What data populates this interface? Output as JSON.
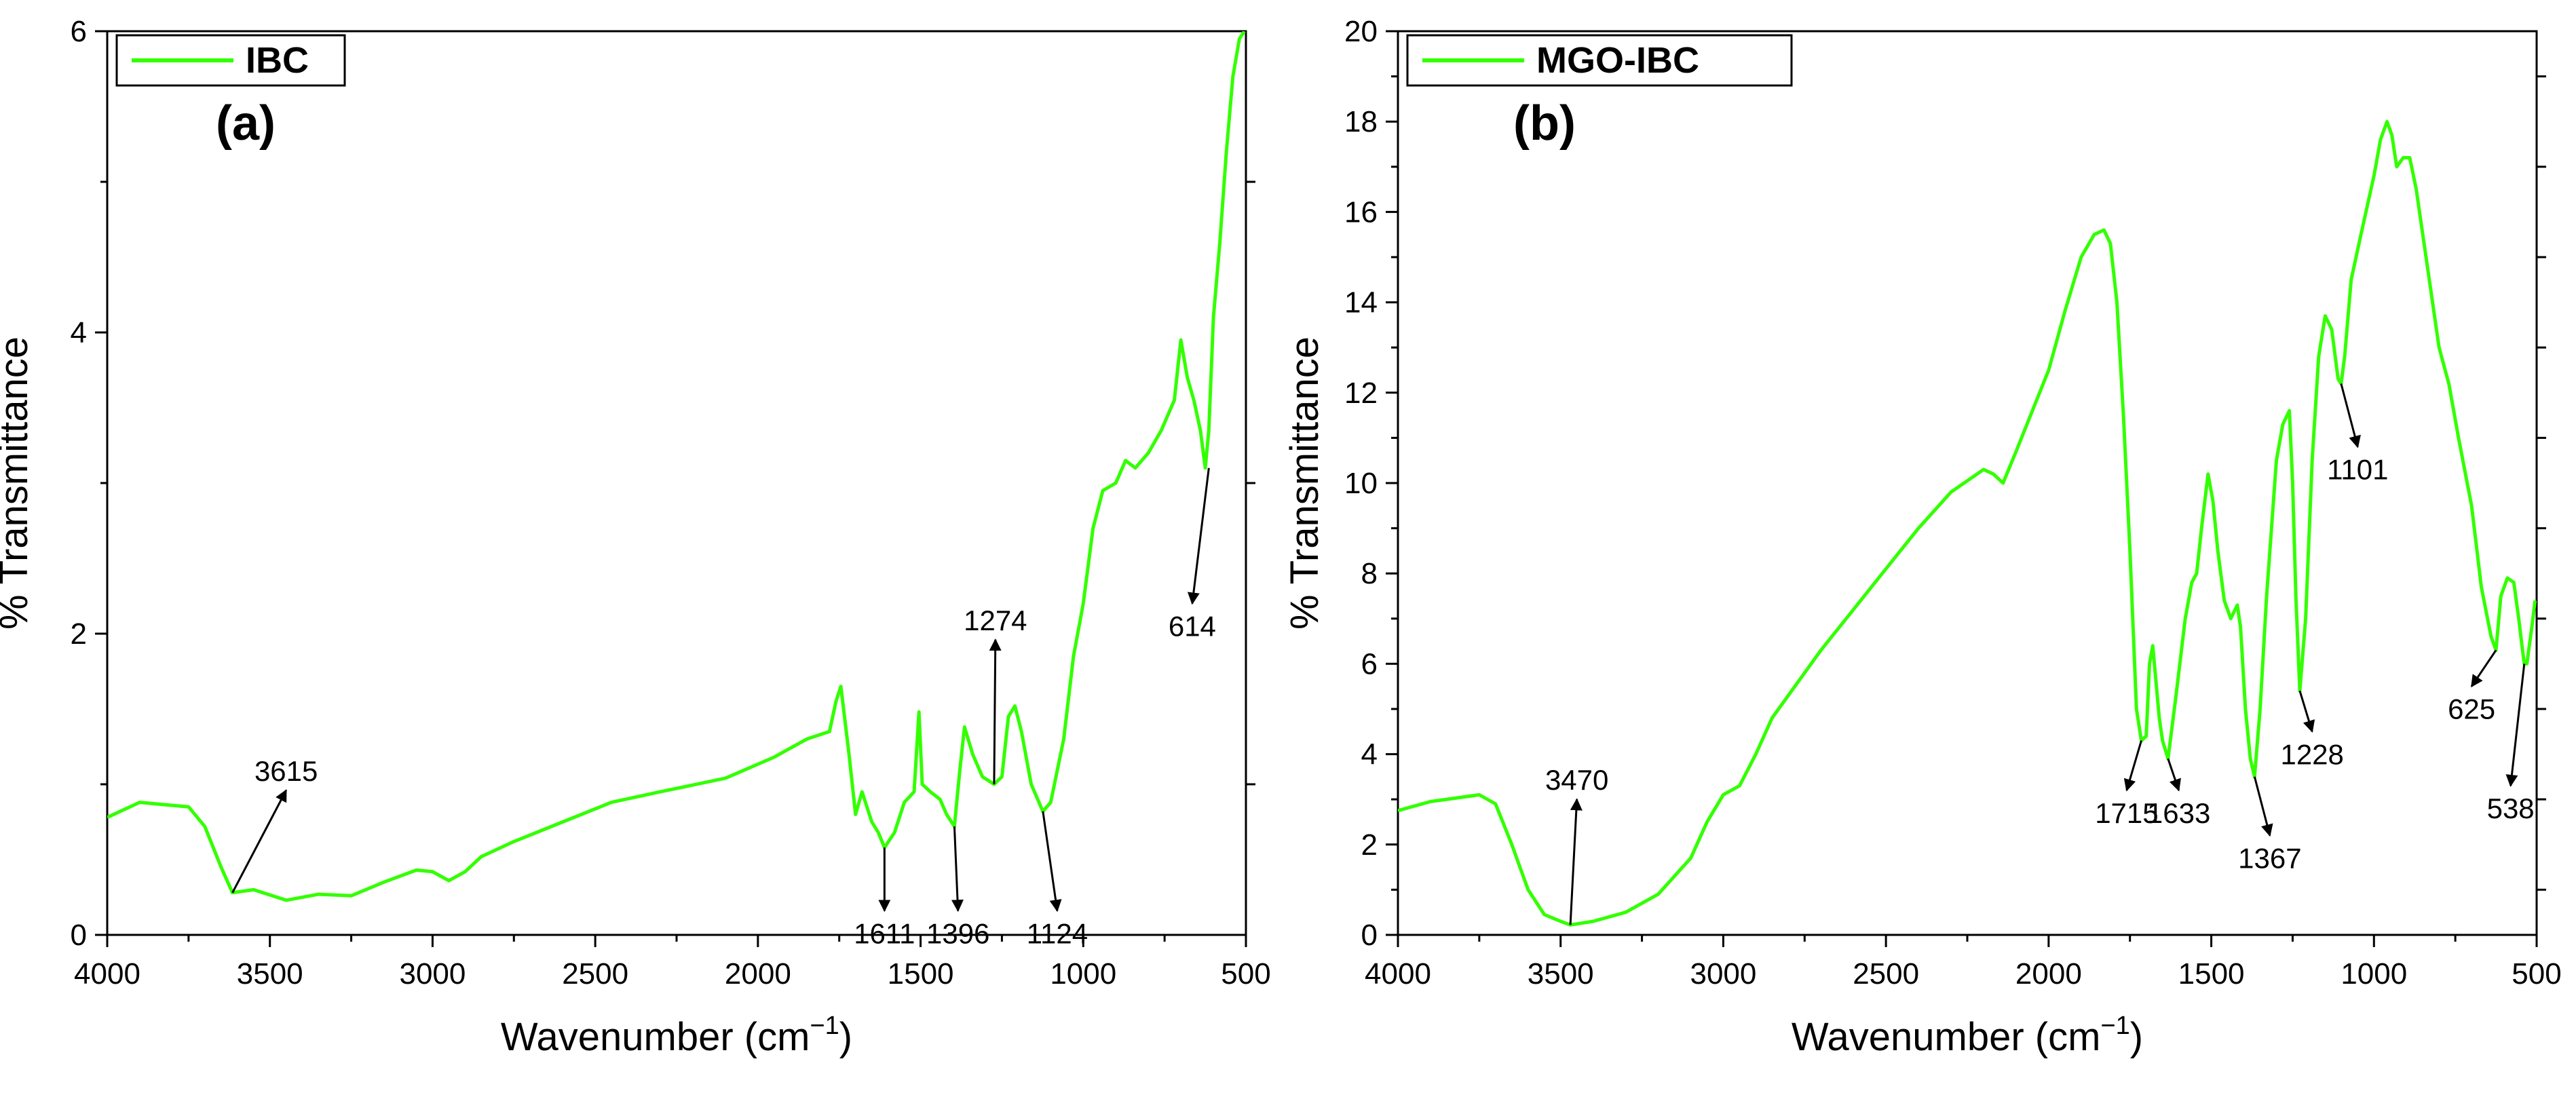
{
  "line_color": "#33ff00",
  "axis_color": "#000000",
  "chart_data": [
    {
      "id": "a",
      "type": "line",
      "panel_label": "(a)",
      "legend": "IBC",
      "xlabel": "Wavenumber (cm",
      "xlabel_sup": "−1",
      "xlabel_end": ")",
      "ylabel": "% Transmittance",
      "xlim": [
        4000,
        500
      ],
      "ylim": [
        0,
        6
      ],
      "xticks": [
        4000,
        3500,
        3000,
        2500,
        2000,
        1500,
        1000,
        500
      ],
      "xtick_labels": [
        "4000",
        "3500",
        "3000",
        "2500",
        "2000",
        "1500",
        "1000",
        "500"
      ],
      "yticks": [
        0,
        2,
        4,
        6
      ],
      "ytick_labels": [
        "0",
        "2",
        "4",
        "6"
      ],
      "series": [
        {
          "name": "IBC",
          "x": [
            4000,
            3900,
            3800,
            3750,
            3700,
            3650,
            3615,
            3550,
            3450,
            3350,
            3250,
            3150,
            3050,
            3000,
            2950,
            2900,
            2850,
            2750,
            2600,
            2450,
            2300,
            2100,
            1950,
            1850,
            1780,
            1760,
            1745,
            1720,
            1700,
            1680,
            1650,
            1630,
            1611,
            1580,
            1550,
            1520,
            1505,
            1495,
            1470,
            1440,
            1420,
            1396,
            1380,
            1365,
            1340,
            1310,
            1274,
            1250,
            1230,
            1210,
            1190,
            1160,
            1124,
            1100,
            1060,
            1030,
            1000,
            970,
            940,
            900,
            870,
            840,
            800,
            760,
            720,
            700,
            680,
            660,
            640,
            625,
            614,
            600,
            580,
            560,
            540,
            520,
            505
          ],
          "y": [
            0.78,
            0.88,
            0.86,
            0.85,
            0.72,
            0.45,
            0.28,
            0.3,
            0.23,
            0.27,
            0.26,
            0.35,
            0.43,
            0.42,
            0.36,
            0.42,
            0.52,
            0.62,
            0.75,
            0.88,
            0.95,
            1.04,
            1.18,
            1.3,
            1.35,
            1.55,
            1.65,
            1.2,
            0.8,
            0.95,
            0.75,
            0.68,
            0.58,
            0.68,
            0.88,
            0.95,
            1.48,
            1.0,
            0.95,
            0.9,
            0.8,
            0.72,
            1.08,
            1.38,
            1.2,
            1.05,
            1.0,
            1.05,
            1.45,
            1.52,
            1.35,
            1.0,
            0.82,
            0.88,
            1.3,
            1.85,
            2.2,
            2.7,
            2.95,
            3.0,
            3.15,
            3.1,
            3.2,
            3.35,
            3.55,
            3.95,
            3.7,
            3.55,
            3.35,
            3.1,
            3.35,
            4.1,
            4.6,
            5.2,
            5.7,
            5.95,
            6.0
          ]
        }
      ],
      "annotations": [
        {
          "text": "3615",
          "x": 3615,
          "y": 0.28,
          "lx": 3450,
          "ly": 0.96
        },
        {
          "text": "1611",
          "x": 1611,
          "y": 0.58,
          "lx": 1611,
          "ly": 0.16
        },
        {
          "text": "1396",
          "x": 1396,
          "y": 0.72,
          "lx": 1385,
          "ly": 0.16
        },
        {
          "text": "1274",
          "x": 1274,
          "y": 1.0,
          "lx": 1270,
          "ly": 1.96
        },
        {
          "text": "1124",
          "x": 1124,
          "y": 0.82,
          "lx": 1080,
          "ly": 0.16
        },
        {
          "text": "614",
          "x": 614,
          "y": 3.1,
          "lx": 665,
          "ly": 2.2
        }
      ]
    },
    {
      "id": "b",
      "type": "line",
      "panel_label": "(b)",
      "legend": "MGO-IBC",
      "xlabel": "Wavenumber (cm",
      "xlabel_sup": "−1",
      "xlabel_end": ")",
      "ylabel": "% Transmittance",
      "xlim": [
        4000,
        500
      ],
      "ylim": [
        0,
        20
      ],
      "xticks": [
        4000,
        3500,
        3000,
        2500,
        2000,
        1500,
        1000,
        500
      ],
      "xtick_labels": [
        "4000",
        "3500",
        "3000",
        "2500",
        "2000",
        "1500",
        "1000",
        "500"
      ],
      "yticks": [
        0,
        2,
        4,
        6,
        8,
        10,
        12,
        14,
        16,
        18,
        20
      ],
      "ytick_labels": [
        "0",
        "2",
        "4",
        "6",
        "8",
        "10",
        "12",
        "14",
        "16",
        "18",
        "20"
      ],
      "series": [
        {
          "name": "MGO-IBC",
          "x": [
            4000,
            3900,
            3800,
            3750,
            3700,
            3650,
            3600,
            3550,
            3500,
            3470,
            3400,
            3300,
            3200,
            3100,
            3050,
            3000,
            2950,
            2900,
            2850,
            2800,
            2700,
            2600,
            2500,
            2400,
            2300,
            2200,
            2170,
            2140,
            2100,
            2000,
            1950,
            1900,
            1860,
            1830,
            1810,
            1790,
            1770,
            1750,
            1730,
            1715,
            1700,
            1690,
            1680,
            1670,
            1660,
            1650,
            1633,
            1610,
            1580,
            1560,
            1545,
            1530,
            1510,
            1495,
            1480,
            1460,
            1440,
            1420,
            1410,
            1395,
            1380,
            1367,
            1350,
            1330,
            1300,
            1280,
            1260,
            1250,
            1240,
            1228,
            1210,
            1190,
            1170,
            1150,
            1130,
            1110,
            1101,
            1090,
            1070,
            1040,
            1000,
            980,
            960,
            945,
            930,
            910,
            890,
            870,
            850,
            830,
            800,
            770,
            740,
            700,
            670,
            640,
            625,
            610,
            590,
            570,
            555,
            545,
            538,
            530,
            515,
            505
          ],
          "y": [
            2.75,
            2.95,
            3.05,
            3.1,
            2.9,
            2.0,
            1.0,
            0.45,
            0.3,
            0.22,
            0.3,
            0.5,
            0.9,
            1.7,
            2.5,
            3.1,
            3.3,
            4.0,
            4.8,
            5.3,
            6.3,
            7.2,
            8.1,
            9.0,
            9.8,
            10.3,
            10.2,
            10.0,
            10.7,
            12.5,
            13.8,
            15.0,
            15.5,
            15.6,
            15.3,
            14.0,
            11.5,
            8.5,
            5.0,
            4.3,
            4.4,
            6.0,
            6.4,
            5.6,
            4.8,
            4.3,
            3.9,
            5.2,
            7.0,
            7.8,
            8.0,
            9.0,
            10.2,
            9.6,
            8.5,
            7.4,
            7.0,
            7.3,
            6.8,
            5.0,
            3.9,
            3.5,
            5.0,
            7.5,
            10.5,
            11.3,
            11.6,
            10.0,
            7.5,
            5.4,
            7.0,
            10.5,
            12.8,
            13.7,
            13.4,
            12.3,
            12.2,
            12.8,
            14.5,
            15.5,
            16.8,
            17.6,
            18.0,
            17.7,
            17.0,
            17.2,
            17.2,
            16.5,
            15.5,
            14.5,
            13.0,
            12.2,
            11.0,
            9.5,
            7.7,
            6.6,
            6.3,
            7.5,
            7.9,
            7.8,
            7.0,
            6.4,
            6.0,
            6.0,
            6.8,
            7.4
          ]
        }
      ],
      "annotations": [
        {
          "text": "3470",
          "x": 3470,
          "y": 0.22,
          "lx": 3450,
          "ly": 3.0
        },
        {
          "text": "1715",
          "x": 1715,
          "y": 4.3,
          "lx": 1760,
          "ly": 3.2
        },
        {
          "text": "1633",
          "x": 1633,
          "y": 3.9,
          "lx": 1600,
          "ly": 3.2
        },
        {
          "text": "1367",
          "x": 1367,
          "y": 3.5,
          "lx": 1320,
          "ly": 2.2
        },
        {
          "text": "1228",
          "x": 1228,
          "y": 5.4,
          "lx": 1190,
          "ly": 4.5
        },
        {
          "text": "1101",
          "x": 1101,
          "y": 12.2,
          "lx": 1050,
          "ly": 10.8
        },
        {
          "text": "625",
          "x": 625,
          "y": 6.3,
          "lx": 700,
          "ly": 5.5
        },
        {
          "text": "538",
          "x": 538,
          "y": 6.0,
          "lx": 580,
          "ly": 3.3
        }
      ]
    }
  ]
}
